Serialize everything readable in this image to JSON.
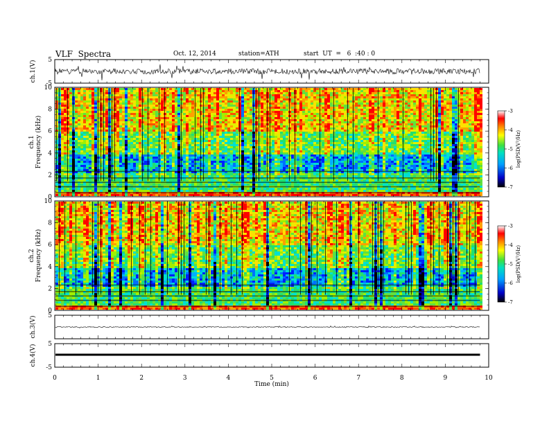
{
  "header": {
    "title": "VLF  Spectra",
    "date": "Oct. 12, 2014",
    "station": "station=ATH",
    "start": "start  UT  =   6  :40 : 0"
  },
  "chart_data": {
    "type": "heatmap",
    "x_axis": {
      "label": "Time  (min)",
      "range": [
        0,
        10
      ],
      "ticks": [
        "0",
        "1",
        "2",
        "3",
        "4",
        "5",
        "6",
        "7",
        "8",
        "9",
        "10"
      ]
    },
    "panels": [
      {
        "id": "ch1-wave",
        "type": "line",
        "ylabel": "ch.1(V)",
        "ylim": [
          -5,
          5
        ],
        "ticks": [
          "5",
          "-5"
        ]
      },
      {
        "id": "ch1-spec",
        "type": "heatmap",
        "ylabel_top": "ch.1",
        "ylabel": "Frequency  (kHz)",
        "ylim": [
          0,
          10
        ],
        "ticks": [
          "0",
          "2",
          "4",
          "6",
          "8",
          "10"
        ],
        "colorbar": {
          "label": "log(PSD(V²/Hz)",
          "range": [
            -7,
            -3
          ],
          "ticks": [
            "-3",
            "-4",
            "-5",
            "-6",
            "-7"
          ]
        }
      },
      {
        "id": "ch2-spec",
        "type": "heatmap",
        "ylabel_top": "ch.2",
        "ylabel": "Frequency  (kHz)",
        "ylim": [
          0,
          10
        ],
        "ticks": [
          "0",
          "2",
          "4",
          "6",
          "8",
          "10"
        ],
        "colorbar": {
          "label": "log(PSD(V²/Hz)",
          "range": [
            -7,
            -3
          ],
          "ticks": [
            "-3",
            "-4",
            "-5",
            "-6",
            "-7"
          ]
        }
      },
      {
        "id": "ch3-wave",
        "type": "line",
        "ylabel": "ch.3(V)",
        "ylim": [
          -5,
          5
        ],
        "ticks": [
          "5"
        ]
      },
      {
        "id": "ch4-wave",
        "type": "line",
        "ylabel": "ch.4(V)",
        "ylim": [
          -5,
          5
        ],
        "ticks": [
          "5",
          "-5"
        ]
      }
    ],
    "data_end_min": 9.8
  }
}
